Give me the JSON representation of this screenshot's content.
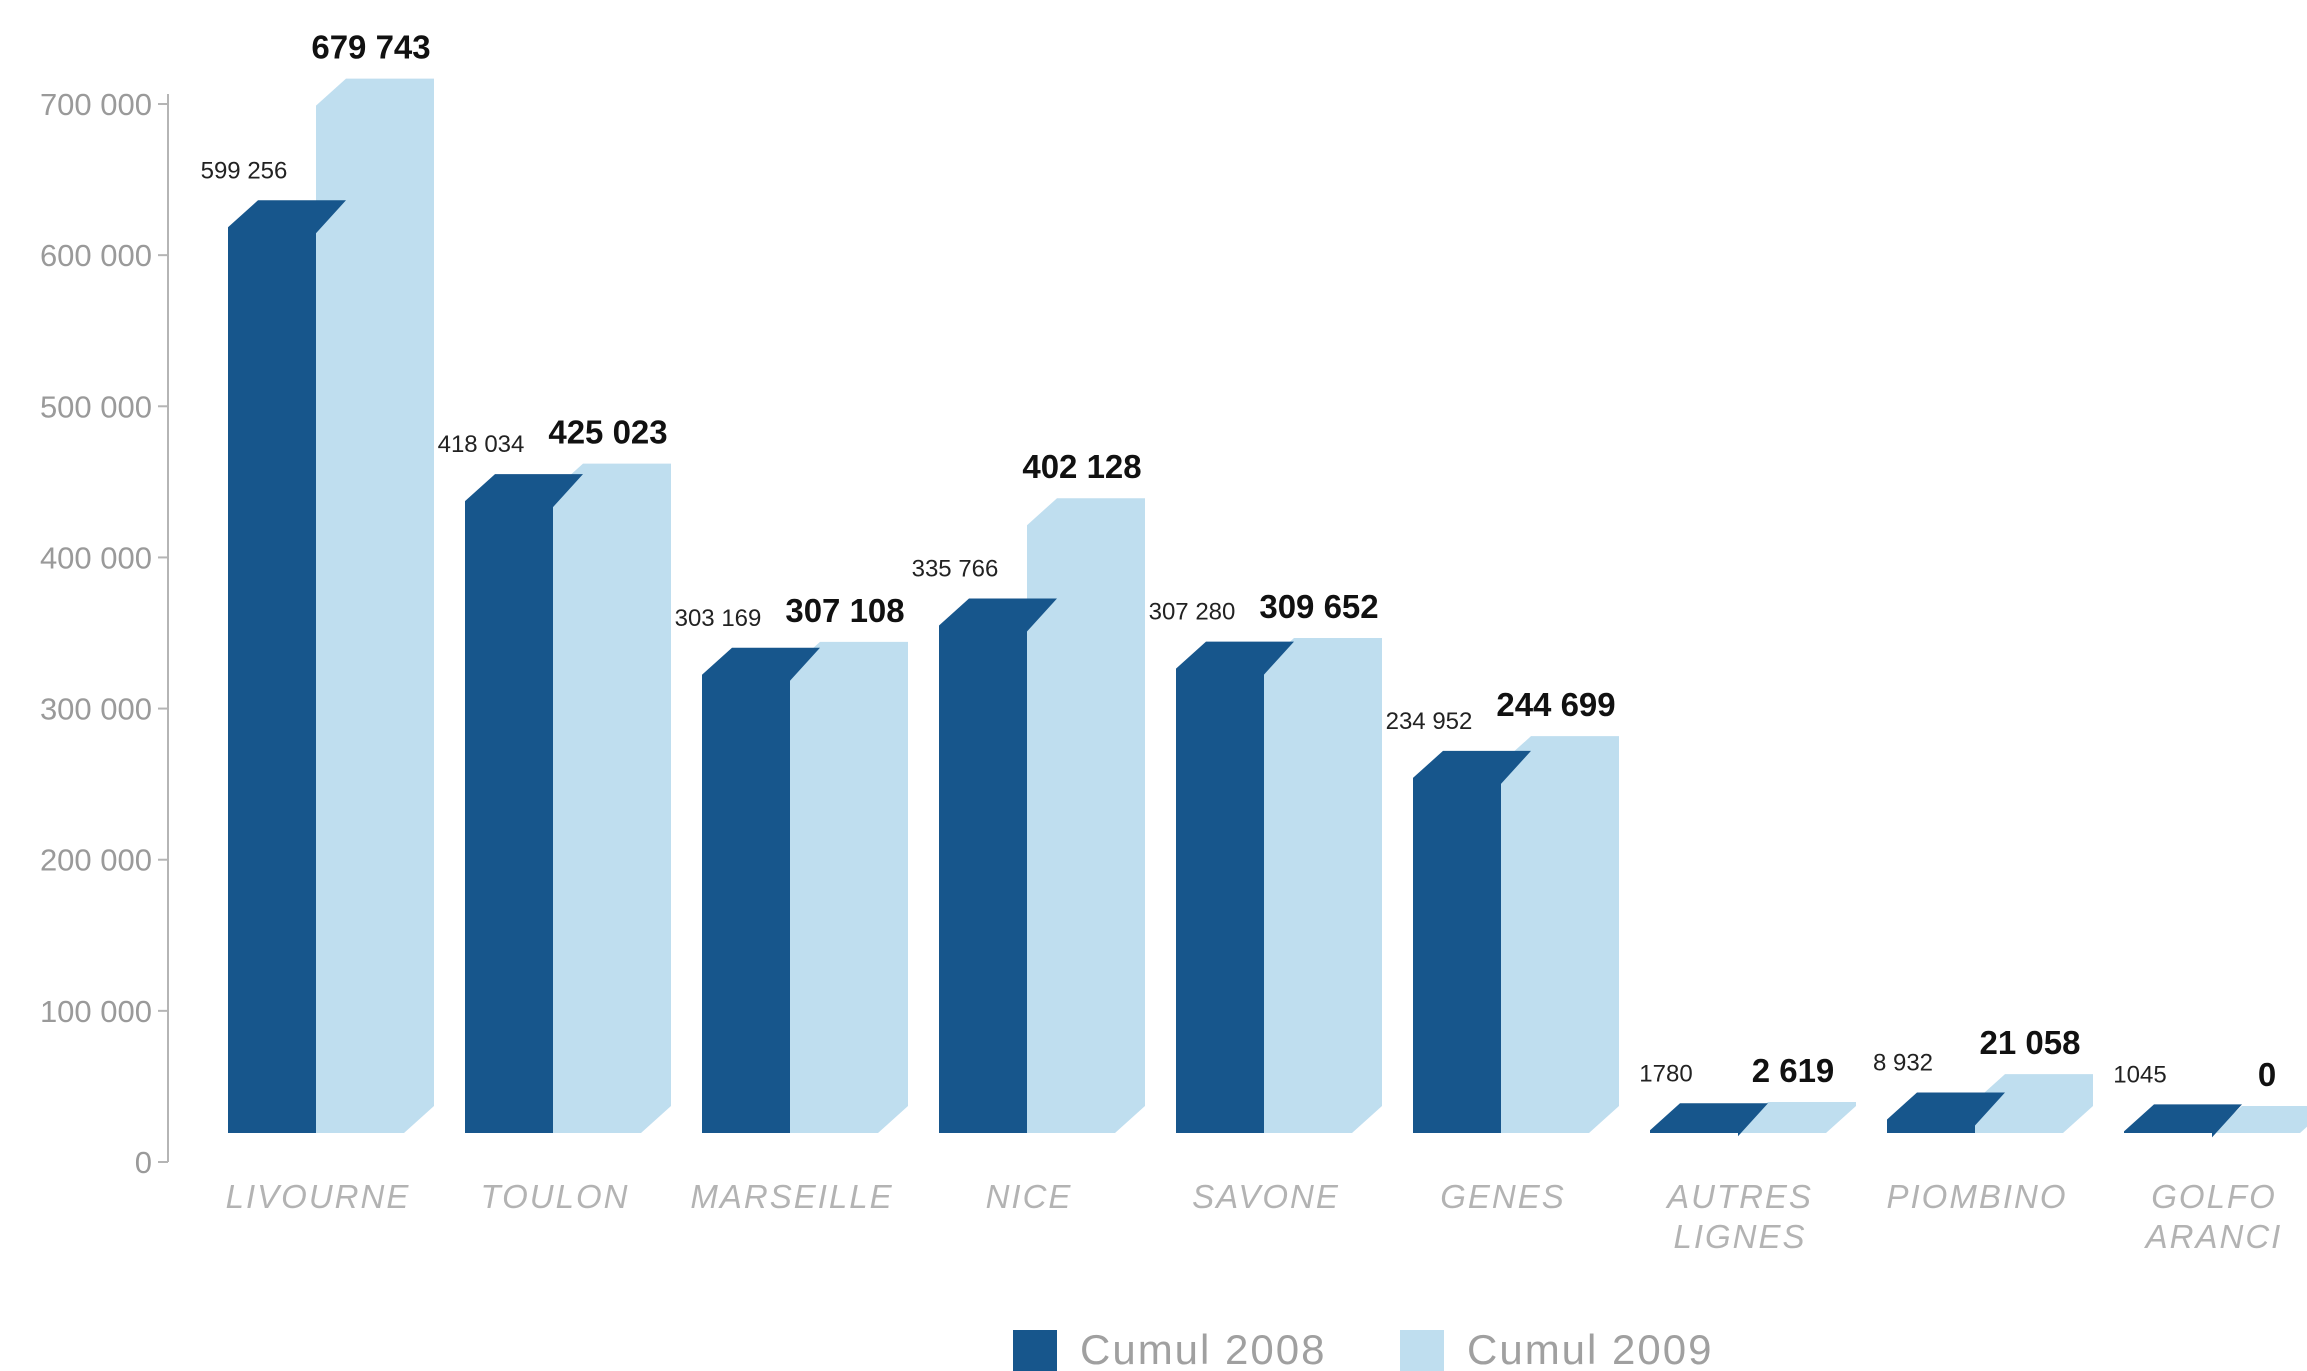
{
  "chart_data": {
    "type": "bar",
    "title": "",
    "xlabel": "",
    "ylabel": "",
    "ylim": [
      0,
      700000
    ],
    "yticks": [
      "0",
      "100 000",
      "200 000",
      "300 000",
      "400 000",
      "500 000",
      "600 000",
      "700 000"
    ],
    "ytick_values": [
      0,
      100000,
      200000,
      300000,
      400000,
      500000,
      600000,
      700000
    ],
    "categories": [
      "LIVOURNE",
      "TOULON",
      "MARSEILLE",
      "NICE",
      "SAVONE",
      "GENES",
      "AUTRES LIGNES",
      "PIOMBINO",
      "GOLFO ARANCI"
    ],
    "series": [
      {
        "name": "Cumul 2008",
        "color": "#17568c",
        "values": [
          599256,
          418034,
          303169,
          335766,
          307280,
          234952,
          1780,
          8932,
          1045
        ],
        "labels": [
          "599 256",
          "418 034",
          "303 169",
          "335 766",
          "307 280",
          "234 952",
          "1780",
          "8 932",
          "1045"
        ]
      },
      {
        "name": "Cumul 2009",
        "color": "#bfdeef",
        "values": [
          679743,
          425023,
          307108,
          402128,
          309652,
          244699,
          2619,
          21058,
          0
        ],
        "labels": [
          "679 743",
          "425 023",
          "307 108",
          "402 128",
          "309 652",
          "244 699",
          "2 619",
          "21 058",
          "0"
        ]
      }
    ],
    "grid": false,
    "legend_position": "bottom-center"
  }
}
